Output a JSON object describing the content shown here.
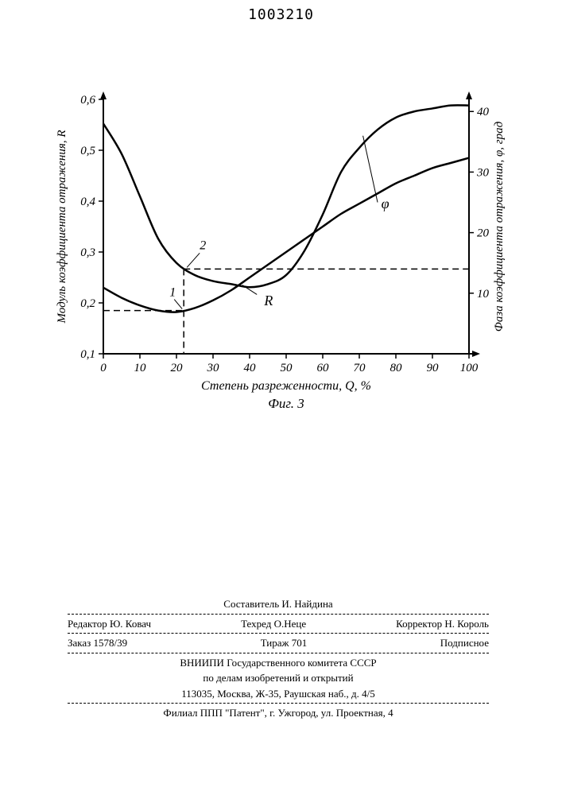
{
  "document_number": "1003210",
  "chart": {
    "type": "line",
    "x_label": "Степень разреженности, Q, %",
    "y_left_label": "Модуль коэффициента отражения, R",
    "y_right_label": "Фаза коэффициента отражения, φ, град",
    "figure_label": "Фиг. 3",
    "x_ticks": [
      0,
      10,
      20,
      30,
      40,
      50,
      60,
      70,
      80,
      90,
      100
    ],
    "y_left_ticks": [
      "0,1",
      "0,2",
      "0,3",
      "0,4",
      "0,5",
      "0,6"
    ],
    "y_right_ticks": [
      10,
      20,
      30,
      40
    ],
    "xlim": [
      0,
      100
    ],
    "ylim_left": [
      0.1,
      0.6
    ],
    "ylim_right": [
      0,
      42
    ],
    "line_color": "#000000",
    "line_width": 2.5,
    "dash_color": "#000000",
    "axis_color": "#000000",
    "background": "#ffffff",
    "series_R": {
      "label": "R",
      "x": [
        0,
        5,
        10,
        15,
        20,
        25,
        30,
        35,
        40,
        45,
        50,
        55,
        60,
        65,
        70,
        75,
        80,
        85,
        90,
        95,
        100
      ],
      "y": [
        0.23,
        0.21,
        0.195,
        0.185,
        0.182,
        0.19,
        0.205,
        0.225,
        0.25,
        0.275,
        0.3,
        0.325,
        0.35,
        0.375,
        0.395,
        0.415,
        0.435,
        0.45,
        0.465,
        0.475,
        0.485
      ]
    },
    "series_phi": {
      "label": "φ",
      "x": [
        0,
        5,
        10,
        15,
        20,
        25,
        30,
        35,
        40,
        45,
        50,
        55,
        60,
        65,
        70,
        75,
        80,
        85,
        90,
        95,
        100
      ],
      "y_right": [
        38,
        33,
        26,
        19,
        15,
        13,
        12,
        11.5,
        11,
        11.5,
        13,
        17,
        23,
        30,
        34,
        37,
        39,
        40,
        40.5,
        41,
        41
      ]
    },
    "marker_1": {
      "x": 22,
      "y_left": 0.185
    },
    "marker_2": {
      "x": 22,
      "y_right": 14
    },
    "label_font_size": 14
  },
  "credits": {
    "composer": "Составитель И. Найдина",
    "editor": "Редактор Ю. Ковач",
    "techred": "Техред О.Неце",
    "corrector": "Корректор Н. Король",
    "order": "Заказ 1578/39",
    "tirazh": "Тираж 701",
    "subscription": "Подписное",
    "org1": "ВНИИПИ Государственного комитета СССР",
    "org2": "по делам изобретений и открытий",
    "addr1": "113035, Москва, Ж-35, Раушская наб., д. 4/5",
    "addr2": "Филиал ППП \"Патент\", г. Ужгород, ул. Проектная, 4"
  }
}
